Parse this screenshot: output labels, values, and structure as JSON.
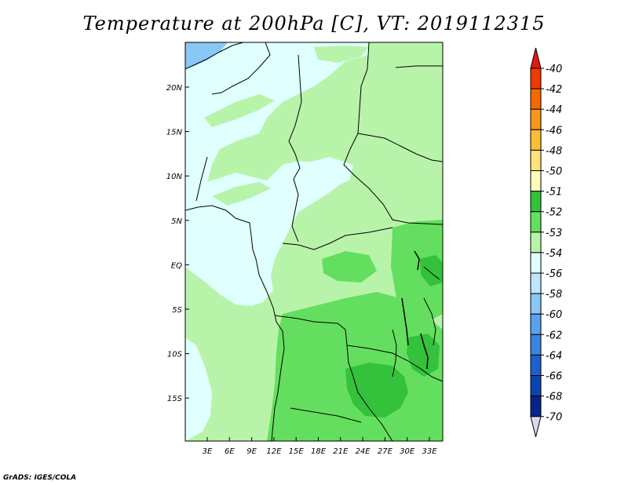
{
  "title": "Temperature at 200hPa [C], VT: 2019112315",
  "credit": "GrADS: IGES/COLA",
  "map": {
    "lon_ticks": [
      "3E",
      "6E",
      "9E",
      "12E",
      "15E",
      "18E",
      "21E",
      "24E",
      "27E",
      "30E",
      "33E"
    ],
    "lat_ticks": [
      "20N",
      "15N",
      "10N",
      "5N",
      "EQ",
      "5S",
      "10S",
      "15S"
    ]
  },
  "colorbar": {
    "labels": [
      "-40",
      "-42",
      "-44",
      "-46",
      "-48",
      "-50",
      "-51",
      "-52",
      "-53",
      "-54",
      "-56",
      "-58",
      "-60",
      "-62",
      "-64",
      "-66",
      "-68",
      "-70"
    ],
    "colors": [
      "#e11a14",
      "#f03a00",
      "#f56a00",
      "#f7971e",
      "#fbbf33",
      "#fee27a",
      "#fffbb8",
      "#34c13c",
      "#64de5e",
      "#b7f4a9",
      "#e0ffff",
      "#bde7fb",
      "#89c7f5",
      "#5aa2ee",
      "#3b83e0",
      "#1f60cc",
      "#0d43b0",
      "#08238a",
      "#040c5a"
    ],
    "max_color": "#e11a14",
    "min_color": "#d8d8f0"
  }
}
